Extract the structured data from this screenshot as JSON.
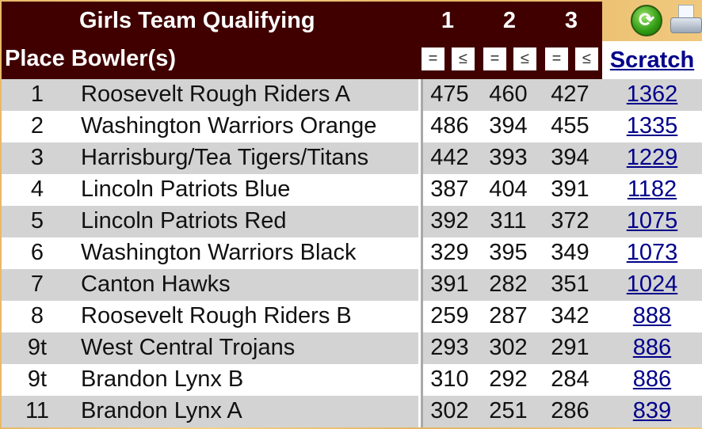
{
  "header": {
    "title": "Girls Team Qualifying",
    "games": [
      "1",
      "2",
      "3"
    ],
    "place_label": "Place",
    "bowler_label": "Bowler(s)",
    "sort_buttons": [
      "=",
      "≤",
      "=",
      "≤",
      "=",
      "≤"
    ],
    "scratch_label": "Scratch",
    "icons": [
      "refresh-icon",
      "printer-icon"
    ]
  },
  "rows": [
    {
      "place": "1",
      "name": "Roosevelt Rough Riders A",
      "g1": "475",
      "g2": "460",
      "g3": "427",
      "scratch": "1362"
    },
    {
      "place": "2",
      "name": "Washington Warriors Orange",
      "g1": "486",
      "g2": "394",
      "g3": "455",
      "scratch": "1335"
    },
    {
      "place": "3",
      "name": "Harrisburg/Tea Tigers/Titans",
      "g1": "442",
      "g2": "393",
      "g3": "394",
      "scratch": "1229"
    },
    {
      "place": "4",
      "name": "Lincoln Patriots Blue",
      "g1": "387",
      "g2": "404",
      "g3": "391",
      "scratch": "1182"
    },
    {
      "place": "5",
      "name": "Lincoln Patriots Red",
      "g1": "392",
      "g2": "311",
      "g3": "372",
      "scratch": "1075"
    },
    {
      "place": "6",
      "name": "Washington Warriors Black",
      "g1": "329",
      "g2": "395",
      "g3": "349",
      "scratch": "1073"
    },
    {
      "place": "7",
      "name": "Canton Hawks",
      "g1": "391",
      "g2": "282",
      "g3": "351",
      "scratch": "1024"
    },
    {
      "place": "8",
      "name": "Roosevelt Rough Riders B",
      "g1": "259",
      "g2": "287",
      "g3": "342",
      "scratch": "888"
    },
    {
      "place": "9t",
      "name": "West Central Trojans",
      "g1": "293",
      "g2": "302",
      "g3": "291",
      "scratch": "886"
    },
    {
      "place": "9t",
      "name": "Brandon Lynx B",
      "g1": "310",
      "g2": "292",
      "g3": "284",
      "scratch": "886"
    },
    {
      "place": "11",
      "name": "Brandon Lynx A",
      "g1": "302",
      "g2": "251",
      "g3": "286",
      "scratch": "839"
    }
  ]
}
